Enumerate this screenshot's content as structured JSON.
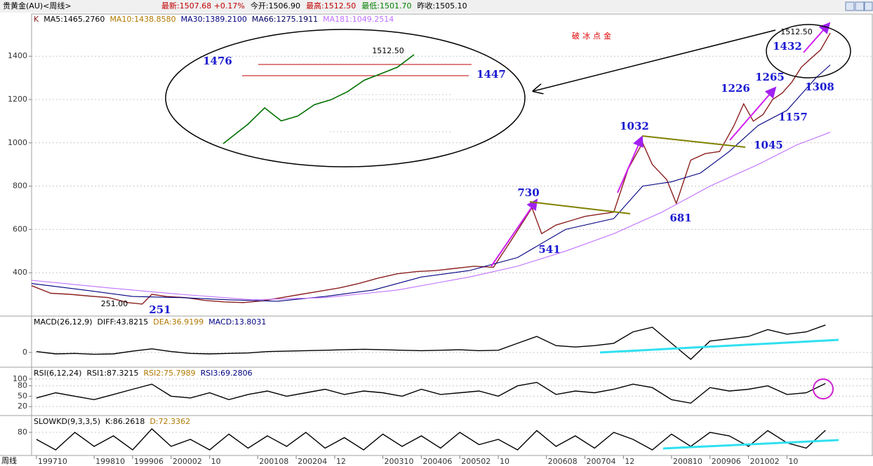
{
  "header": {
    "title": "贵黄金(AU)<周线>",
    "items": [
      "最新:1507.68 +0.17%",
      "今开:1506.90",
      "最高:1512.50",
      "最低:1501.70",
      "昨收:1505.10"
    ]
  },
  "x_axis_label": "周线",
  "chart_data": [
    {
      "type": "line",
      "xlim": [
        -1,
        166
      ],
      "xticks": [
        {
          "value": 0,
          "label": "199710"
        },
        {
          "value": 12,
          "label": "199810"
        },
        {
          "value": 20,
          "label": "199906"
        },
        {
          "value": 28,
          "label": "200002"
        },
        {
          "value": 36,
          "label": "10"
        },
        {
          "value": 46,
          "label": "200108"
        },
        {
          "value": 54,
          "label": "200204"
        },
        {
          "value": 62,
          "label": "12"
        },
        {
          "value": 72,
          "label": "200310"
        },
        {
          "value": 80,
          "label": "200406"
        },
        {
          "value": 88,
          "label": "200502"
        },
        {
          "value": 96,
          "label": "10"
        },
        {
          "value": 106,
          "label": "200608"
        },
        {
          "value": 114,
          "label": "200704"
        },
        {
          "value": 122,
          "label": "12"
        },
        {
          "value": 132,
          "label": "200810"
        },
        {
          "value": 140,
          "label": "200906"
        },
        {
          "value": 148,
          "label": "201002"
        },
        {
          "value": 156,
          "label": "10"
        }
      ],
      "ylim": [
        203,
        1595
      ],
      "yticks": [
        400,
        600,
        800,
        1000,
        1200,
        1400
      ],
      "series": [
        {
          "name": "K",
          "color": "#8b2020",
          "x": [
            -1,
            3,
            7,
            11,
            15,
            19,
            22,
            24,
            27,
            31,
            35,
            39,
            43,
            47,
            51,
            55,
            59,
            63,
            67,
            71,
            75,
            79,
            83,
            87,
            91,
            95,
            99,
            103,
            105,
            108,
            111,
            114,
            117,
            120,
            123,
            126,
            128,
            131,
            133,
            136,
            139,
            142,
            145,
            147,
            149,
            151,
            153,
            155,
            157,
            159,
            161,
            163,
            165
          ],
          "values": [
            340,
            305,
            300,
            292,
            285,
            262,
            255,
            300,
            290,
            285,
            272,
            265,
            262,
            270,
            285,
            300,
            315,
            330,
            350,
            375,
            395,
            405,
            410,
            420,
            430,
            425,
            560,
            700,
            580,
            620,
            640,
            660,
            670,
            680,
            880,
            1000,
            900,
            830,
            720,
            920,
            950,
            960,
            1080,
            1180,
            1100,
            1130,
            1200,
            1230,
            1280,
            1350,
            1390,
            1430,
            1507
          ]
        },
        {
          "name": "MA30:1389.2100",
          "color": "#000080",
          "x": [
            -1,
            10,
            20,
            30,
            40,
            50,
            60,
            70,
            80,
            90,
            100,
            110,
            120,
            126,
            132,
            138,
            144,
            150,
            156,
            162,
            165
          ],
          "values": [
            350,
            320,
            290,
            285,
            275,
            268,
            290,
            320,
            380,
            410,
            470,
            600,
            650,
            800,
            820,
            860,
            960,
            1080,
            1150,
            1300,
            1360
          ]
        },
        {
          "name": "MA181:1049.2514",
          "color": "#c070ff",
          "x": [
            -1,
            15,
            30,
            45,
            60,
            75,
            90,
            100,
            110,
            120,
            130,
            140,
            150,
            158,
            165
          ],
          "values": [
            365,
            330,
            300,
            275,
            285,
            320,
            380,
            430,
            500,
            580,
            680,
            800,
            900,
            990,
            1049
          ]
        }
      ],
      "legend_extra": [
        {
          "name": "MA5:1465.2760",
          "color": "#000000"
        },
        {
          "name": "MA10:1438.8580",
          "color": "#b07800"
        },
        {
          "name": "MA66:1275.1911",
          "color": "#000060"
        }
      ],
      "title": "破冰点金",
      "annotations": [
        "1476",
        "1447",
        "1512.50",
        "730",
        "541",
        "1032",
        "681",
        "1226",
        "1265",
        "1432",
        "1512.50",
        "1308",
        "1157",
        "1045",
        "251",
        "251.00"
      ]
    },
    {
      "type": "line",
      "label": "MACD(26,12,9)",
      "xlim": [
        -1,
        166
      ],
      "ylim": [
        -29,
        78
      ],
      "yticks": [
        0
      ],
      "series": [
        {
          "name": "DIFF:43.8215",
          "color": "#000000",
          "x": [
            0,
            4,
            8,
            12,
            16,
            20,
            24,
            28,
            32,
            36,
            40,
            44,
            48,
            52,
            56,
            60,
            64,
            68,
            72,
            76,
            80,
            84,
            88,
            92,
            96,
            100,
            104,
            108,
            112,
            116,
            120,
            124,
            128,
            132,
            136,
            140,
            144,
            148,
            152,
            156,
            160,
            164
          ],
          "values": [
            2,
            -3,
            -2,
            -4,
            -3,
            3,
            8,
            2,
            -2,
            -3,
            -2,
            -1,
            2,
            3,
            4,
            5,
            6,
            7,
            6,
            5,
            4,
            5,
            6,
            4,
            5,
            20,
            35,
            15,
            12,
            15,
            20,
            45,
            55,
            20,
            -15,
            25,
            30,
            35,
            50,
            40,
            45,
            60
          ]
        }
      ],
      "legend_extra": [
        {
          "name": "DEA:36.9199",
          "color": "#b07800"
        },
        {
          "name": "MACD:13.8031",
          "color": "#000080"
        }
      ]
    },
    {
      "type": "line",
      "label": "RSI(6,12,24)",
      "xlim": [
        -1,
        166
      ],
      "ylim": [
        -4,
        132
      ],
      "yticks": [
        20,
        50,
        80,
        100
      ],
      "series": [
        {
          "name": "RSI1:87.3215",
          "color": "#000000",
          "x": [
            0,
            4,
            8,
            12,
            16,
            20,
            24,
            28,
            32,
            36,
            40,
            44,
            48,
            52,
            56,
            60,
            64,
            68,
            72,
            76,
            80,
            84,
            88,
            92,
            96,
            100,
            104,
            108,
            112,
            116,
            120,
            124,
            128,
            132,
            136,
            140,
            144,
            148,
            152,
            156,
            160,
            164
          ],
          "values": [
            45,
            60,
            50,
            40,
            55,
            70,
            85,
            50,
            45,
            60,
            40,
            55,
            65,
            50,
            60,
            70,
            55,
            65,
            60,
            50,
            70,
            55,
            60,
            65,
            50,
            80,
            90,
            55,
            65,
            60,
            70,
            85,
            75,
            40,
            30,
            75,
            65,
            70,
            80,
            55,
            60,
            87
          ]
        }
      ],
      "legend_extra": [
        {
          "name": "RSI2:75.7989",
          "color": "#b07800"
        },
        {
          "name": "RSI3:69.2806",
          "color": "#000080"
        }
      ]
    },
    {
      "type": "line",
      "label": "SLOWKD(9,3,3,5)",
      "xlim": [
        -1,
        166
      ],
      "ylim": [
        14,
        126
      ],
      "yticks": [
        80
      ],
      "series": [
        {
          "name": "K:86.2618",
          "color": "#000000",
          "x": [
            0,
            4,
            8,
            12,
            16,
            20,
            24,
            28,
            32,
            36,
            40,
            44,
            48,
            52,
            56,
            60,
            64,
            68,
            72,
            76,
            80,
            84,
            88,
            92,
            96,
            100,
            104,
            108,
            112,
            116,
            120,
            124,
            128,
            132,
            136,
            140,
            144,
            148,
            152,
            156,
            160,
            164
          ],
          "values": [
            60,
            30,
            80,
            40,
            70,
            30,
            90,
            40,
            60,
            30,
            75,
            35,
            70,
            40,
            80,
            35,
            65,
            30,
            75,
            40,
            70,
            35,
            80,
            45,
            60,
            30,
            85,
            40,
            70,
            35,
            80,
            60,
            30,
            75,
            40,
            80,
            70,
            40,
            85,
            50,
            35,
            86
          ]
        }
      ],
      "legend_extra": [
        {
          "name": "D:72.3362",
          "color": "#b07800"
        }
      ]
    }
  ]
}
